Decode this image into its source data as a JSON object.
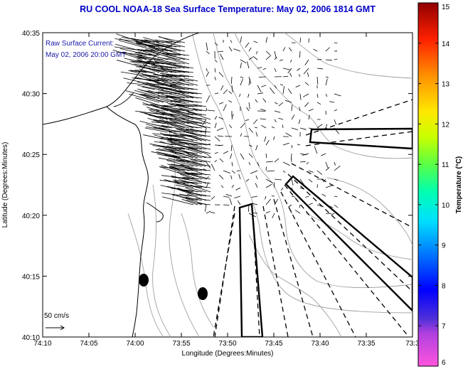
{
  "header": {
    "title": "RU COOL  NOAA-18  Sea Surface Temperature:  May 02, 2006 1814 GMT"
  },
  "map": {
    "annotation_line1": "Raw Surface Current:",
    "annotation_line2": "May 02, 2006 20:00 GMT",
    "scale_label": "50 cm/s",
    "x_axis_label": "Longitude (Degrees:Minutes)",
    "y_axis_label": "Latitude (Degrees:Minutes)",
    "x_ticks": [
      "74:10",
      "74:05",
      "74:00",
      "73:55",
      "73:50",
      "73:45",
      "73:40",
      "73:35",
      "73:3"
    ],
    "y_ticks": [
      "40:35",
      "40:30",
      "40:25",
      "40:20",
      "40:15",
      "40:10"
    ]
  },
  "colorbar": {
    "label": "Temperature (°C)",
    "ticks": [
      "15",
      "14",
      "13",
      "12",
      "11",
      "10",
      "9",
      "8",
      "7",
      "6"
    ],
    "min": 6,
    "max": 15
  },
  "colors": {
    "title": "#0000c8",
    "annotation": "#1a1aa8",
    "land": "#ffffff",
    "contour": "#a0a0a0"
  }
}
